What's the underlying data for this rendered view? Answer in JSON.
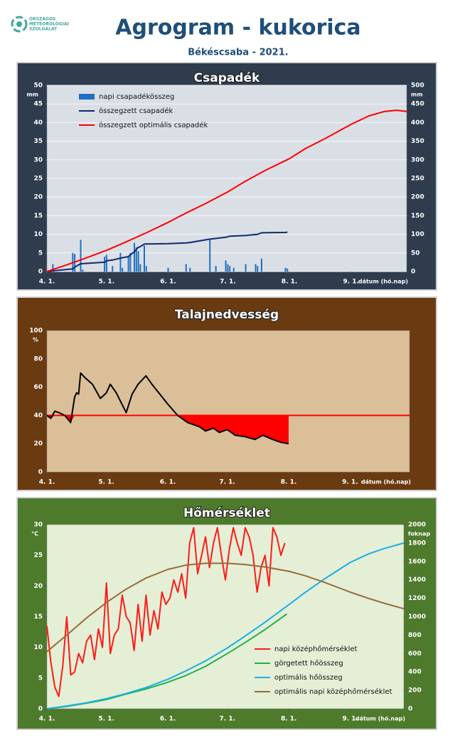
{
  "header": {
    "logo_text": [
      "ORSZÁGOS",
      "METEOROLÓGIAI",
      "SZOLGÁLAT"
    ],
    "title": "Agrogram - kukorica",
    "subtitle": "Békéscsaba - 2021."
  },
  "chart_data": [
    {
      "type": "combo",
      "title": "Csapadék",
      "background": "#2e3c4e",
      "plot_background": "#dadfe6",
      "grid": true,
      "legend": "upper left",
      "xlabel": "dátum (hó.nap)",
      "y_unit": "mm",
      "y2_unit": "mm",
      "xlim": [
        0,
        181
      ],
      "xticks": [
        {
          "value": 0,
          "label": "4. 1."
        },
        {
          "value": 30,
          "label": "5. 1."
        },
        {
          "value": 61,
          "label": "6. 1."
        },
        {
          "value": 91,
          "label": "7. 1."
        },
        {
          "value": 122,
          "label": "8. 1."
        },
        {
          "value": 153,
          "label": "9. 1."
        }
      ],
      "ylim": [
        0,
        50
      ],
      "yticks": [
        0,
        5,
        10,
        15,
        20,
        25,
        30,
        35,
        40,
        45,
        50
      ],
      "y2lim": [
        0,
        500
      ],
      "y2ticks": [
        0,
        50,
        100,
        150,
        200,
        250,
        300,
        350,
        400,
        450,
        500
      ],
      "series": [
        {
          "name": "napi csapadékösszeg",
          "kind": "bar",
          "color": "#1f6fc0",
          "x": [
            3,
            13,
            14,
            17,
            18,
            29,
            30,
            33,
            37,
            38,
            41,
            42,
            44,
            45,
            46,
            47,
            49,
            50,
            61,
            70,
            72,
            82,
            85,
            90,
            91,
            92,
            94,
            100,
            105,
            106,
            108,
            120,
            121
          ],
          "values": [
            2,
            5,
            4.7,
            8.5,
            0.5,
            4,
            4.5,
            1.5,
            5,
            1,
            4,
            5,
            7.7,
            6.5,
            5.5,
            2,
            7,
            1.5,
            1,
            2,
            1,
            8.5,
            1.5,
            3,
            2,
            1.5,
            1,
            2,
            2,
            1.5,
            3.5,
            1,
            0.8
          ]
        },
        {
          "name": "összegzett csapadék",
          "kind": "line",
          "axis": "y2",
          "color": "#0d2a6b",
          "x": [
            0,
            3,
            13,
            14,
            17,
            29,
            30,
            33,
            37,
            41,
            42,
            44,
            45,
            46,
            47,
            49,
            61,
            70,
            72,
            82,
            90,
            92,
            100,
            106,
            108,
            120,
            121
          ],
          "values": [
            0,
            2,
            7,
            12,
            21,
            25,
            29,
            31,
            36,
            40,
            45,
            53,
            60,
            65,
            67,
            74,
            75,
            77,
            78,
            87,
            92,
            95,
            97,
            100,
            104,
            105,
            106
          ]
        },
        {
          "name": "összegzett optimális  csapadék",
          "kind": "line",
          "axis": "y2",
          "color": "#ff0000",
          "x": [
            0,
            10,
            20,
            30,
            40,
            50,
            61,
            70,
            80,
            91,
            100,
            110,
            122,
            130,
            140,
            153,
            162,
            170,
            176,
            181
          ],
          "values": [
            0,
            18,
            37,
            57,
            80,
            104,
            132,
            157,
            183,
            214,
            243,
            272,
            303,
            330,
            357,
            395,
            418,
            430,
            433,
            430
          ]
        }
      ]
    },
    {
      "type": "combo",
      "title": "Talajnedvesség",
      "background": "#6a3a10",
      "plot_background": "#dbbf98",
      "grid": false,
      "xlabel": "dátum (hó.nap)",
      "y_unit": "%",
      "deficit_fill": "#ff0000",
      "xlim": [
        0,
        183
      ],
      "xticks": [
        {
          "value": 0,
          "label": "4. 1."
        },
        {
          "value": 30,
          "label": "5. 1."
        },
        {
          "value": 61,
          "label": "6. 1."
        },
        {
          "value": 91,
          "label": "7. 1."
        },
        {
          "value": 122,
          "label": "8. 1."
        },
        {
          "value": 153,
          "label": "9. 1."
        }
      ],
      "ylim": [
        0,
        100
      ],
      "yticks": [
        0,
        20,
        40,
        60,
        80,
        100
      ],
      "series": [
        {
          "kind": "line",
          "color": "#ff0000",
          "x": [
            0,
            183
          ],
          "values": [
            40,
            40
          ]
        },
        {
          "kind": "line",
          "color": "#000000",
          "x": [
            0,
            2,
            4,
            6,
            9,
            12,
            14,
            15,
            16,
            17,
            19,
            23,
            27,
            30,
            32,
            35,
            40,
            43,
            46,
            50,
            53,
            57,
            61,
            66,
            71,
            77,
            80,
            84,
            87,
            91,
            95,
            100,
            105,
            109,
            114,
            118,
            122
          ],
          "values": [
            40,
            38,
            43,
            42,
            40,
            35,
            53,
            56,
            55,
            70,
            67,
            62,
            52,
            56,
            62,
            56,
            42,
            55,
            62,
            68,
            62,
            55,
            48,
            40,
            35,
            32,
            29,
            31,
            28,
            30,
            26,
            25,
            23,
            26,
            23,
            21,
            20
          ]
        }
      ]
    },
    {
      "type": "combo",
      "title": "Hőmérséklet",
      "background": "#4e7a2c",
      "plot_background": "#e4efd6",
      "grid": false,
      "legend": "lower right",
      "xlabel": "dátum (hó.nap)",
      "y_unit": "°C",
      "y2_unit": "foknap",
      "xlim": [
        0,
        180
      ],
      "xticks": [
        {
          "value": 0,
          "label": "4. 1."
        },
        {
          "value": 30,
          "label": "5. 1."
        },
        {
          "value": 61,
          "label": "6. 1."
        },
        {
          "value": 91,
          "label": "7. 1."
        },
        {
          "value": 122,
          "label": "8. 1."
        },
        {
          "value": 153,
          "label": "9. 1."
        }
      ],
      "ylim": [
        0,
        30
      ],
      "yticks": [
        0,
        5,
        10,
        15,
        20,
        25,
        30
      ],
      "y2lim": [
        0,
        2000
      ],
      "y2ticks": [
        0,
        200,
        400,
        600,
        800,
        1000,
        1200,
        1400,
        1600,
        1800,
        2000
      ],
      "series": [
        {
          "name": "napi középhőmérséklet",
          "kind": "line",
          "color": "#ff1a1a",
          "x": [
            0,
            2,
            4,
            6,
            8,
            10,
            12,
            14,
            16,
            18,
            20,
            22,
            24,
            26,
            28,
            30,
            32,
            34,
            36,
            38,
            40,
            42,
            44,
            46,
            48,
            50,
            52,
            54,
            56,
            58,
            60,
            62,
            64,
            66,
            68,
            70,
            72,
            74,
            76,
            78,
            80,
            82,
            84,
            86,
            88,
            90,
            92,
            94,
            96,
            98,
            100,
            102,
            104,
            106,
            108,
            110,
            112,
            114,
            116,
            118,
            120
          ],
          "values": [
            13.5,
            7.5,
            3.5,
            2,
            7,
            15,
            5.5,
            6,
            9,
            7.5,
            11,
            12,
            8,
            13,
            10,
            20.5,
            9,
            12,
            13,
            18.5,
            15,
            14,
            9.5,
            17,
            11,
            18.5,
            12,
            16,
            13,
            19,
            17,
            18,
            21,
            19,
            22,
            18,
            27,
            29.5,
            22,
            25,
            28,
            23,
            27,
            29.5,
            25,
            21,
            26,
            29.5,
            27,
            25,
            29.5,
            28,
            25,
            19,
            23,
            25,
            20,
            29.5,
            28,
            25,
            27
          ]
        },
        {
          "name": "görgetett hőösszeg",
          "kind": "line",
          "axis": "y2",
          "color": "#22b04a",
          "x": [
            0,
            10,
            20,
            30,
            40,
            50,
            60,
            70,
            80,
            91,
            100,
            110,
            121
          ],
          "values": [
            0,
            25,
            60,
            100,
            160,
            215,
            280,
            360,
            460,
            600,
            720,
            860,
            1030
          ]
        },
        {
          "name": "optimális hőösszeg",
          "kind": "line",
          "axis": "y2",
          "color": "#1aaee6",
          "x": [
            0,
            10,
            20,
            30,
            40,
            50,
            61,
            70,
            80,
            91,
            100,
            110,
            122,
            130,
            140,
            153,
            162,
            170,
            180
          ],
          "values": [
            0,
            30,
            65,
            110,
            165,
            230,
            320,
            410,
            520,
            660,
            790,
            940,
            1130,
            1260,
            1410,
            1590,
            1680,
            1740,
            1800
          ]
        },
        {
          "name": "optimális napi középhőmérséklet",
          "kind": "line",
          "color": "#9a6a3a",
          "x": [
            0,
            10,
            20,
            30,
            40,
            50,
            61,
            70,
            80,
            91,
            100,
            110,
            122,
            130,
            140,
            153,
            162,
            170,
            180
          ],
          "values": [
            9.3,
            12,
            14.8,
            17.3,
            19.5,
            21.3,
            22.7,
            23.4,
            23.7,
            23.7,
            23.5,
            23.1,
            22.4,
            21.7,
            20.6,
            19,
            18,
            17.2,
            16.3
          ]
        }
      ]
    }
  ]
}
